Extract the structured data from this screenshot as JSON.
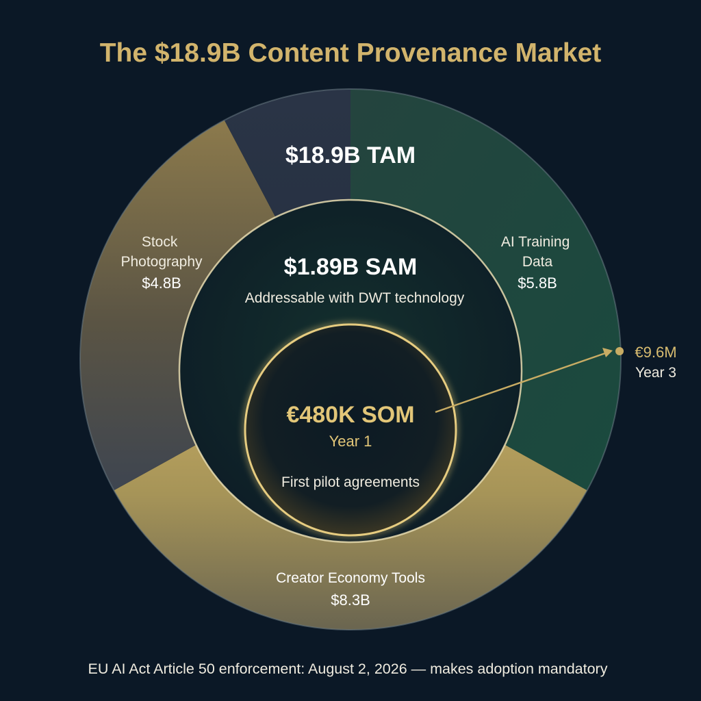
{
  "title": "The $18.9B Content Provenance Market",
  "colors": {
    "background": "#0b1826",
    "gold": "#c8ac64",
    "teal": "#1e4a40",
    "slate": "#2a3444",
    "text": "#ffffff",
    "gold_text": "#d8bc70"
  },
  "tam": {
    "label": "$18.9B TAM",
    "segments": [
      {
        "name_lines": [
          "Stock",
          "Photography"
        ],
        "value_label": "$4.8B",
        "value": 4.8,
        "color": "gold"
      },
      {
        "name_lines": [
          "AI Training",
          "Data"
        ],
        "value_label": "$5.8B",
        "value": 5.8,
        "color": "teal"
      },
      {
        "name_lines": [
          "Creator Economy Tools"
        ],
        "value_label": "$8.3B",
        "value": 8.3,
        "color": "gold"
      }
    ]
  },
  "sam": {
    "label": "$1.89B SAM",
    "sublabel": "Addressable with DWT technology"
  },
  "som": {
    "label": "€480K SOM",
    "year": "Year 1",
    "note": "First pilot agreements"
  },
  "projection": {
    "value": "€9.6M",
    "year": "Year 3"
  },
  "footer": "EU AI Act Article 50 enforcement: August 2, 2026 — makes adoption mandatory"
}
